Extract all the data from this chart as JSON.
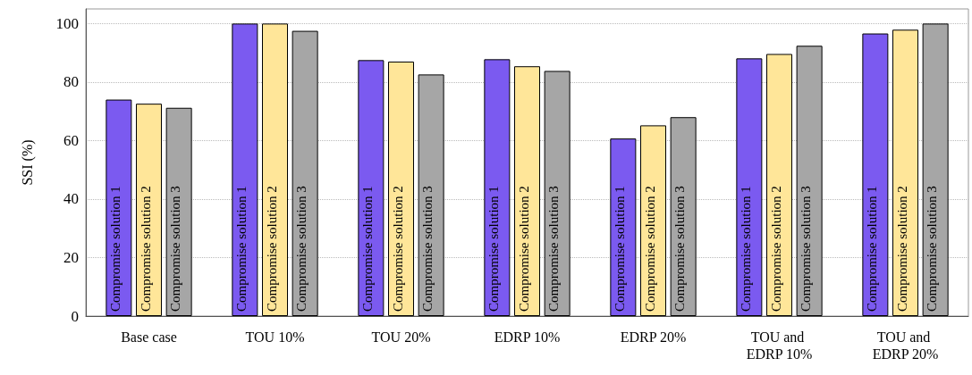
{
  "chart_data": {
    "type": "bar",
    "ylabel": "SSI (%)",
    "categories": [
      "Base case",
      "TOU 10%",
      "TOU 20%",
      "EDRP 10%",
      "EDRP 20%",
      "TOU and EDRP 10%",
      "TOU and EDRP 20%"
    ],
    "series": [
      {
        "name": "Compromise solution 1",
        "color": "#7b5af0",
        "values": [
          74.0,
          100,
          87.5,
          87.8,
          60.7,
          88.1,
          96.6
        ]
      },
      {
        "name": "Compromise solution 2",
        "color": "#ffe699",
        "values": [
          72.6,
          100,
          87.0,
          85.4,
          65.2,
          89.6,
          97.9
        ]
      },
      {
        "name": "Compromise solution 3",
        "color": "#a6a6a6",
        "values": [
          71.2,
          97.5,
          82.6,
          83.8,
          68.0,
          92.4,
          100
        ]
      }
    ],
    "ylim": [
      0,
      105
    ],
    "yticks": [
      0,
      20,
      40,
      60,
      80,
      100
    ],
    "grid": "y",
    "legend": false
  }
}
